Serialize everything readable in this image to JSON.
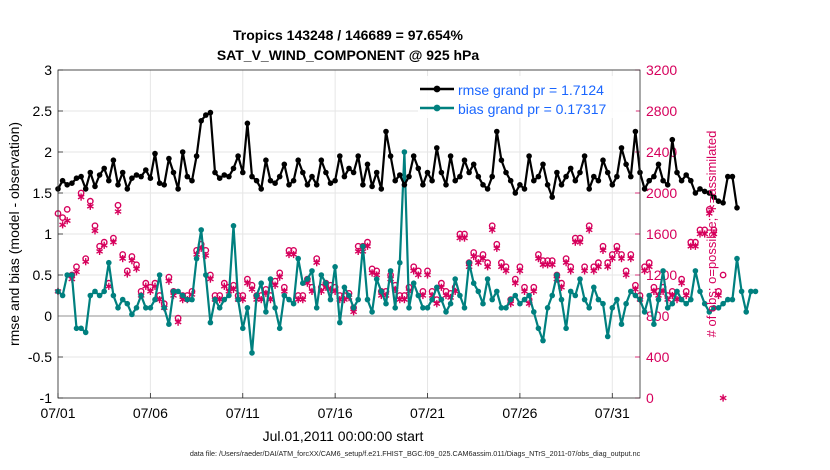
{
  "chart_data": {
    "type": "line",
    "title": "Tropics 143248 / 146689 = 97.654%",
    "subtitle": "SAT_V_WIND_COMPONENT @ 925 hPa",
    "xlabel": "Jul.01,2011 00:00:00 start",
    "ylabel": "rmse and bias (model - observation)",
    "ylabel_right": "# of obs: o=possible; ∗=assimilated",
    "ylim": [
      -1,
      3
    ],
    "ylim_right": [
      0,
      3200
    ],
    "xlim_days": [
      1,
      32.5
    ],
    "x_ticks": [
      {
        "day": 1,
        "label": "07/01"
      },
      {
        "day": 6,
        "label": "07/06"
      },
      {
        "day": 11,
        "label": "07/11"
      },
      {
        "day": 16,
        "label": "07/16"
      },
      {
        "day": 21,
        "label": "07/21"
      },
      {
        "day": 26,
        "label": "07/26"
      },
      {
        "day": 31,
        "label": "07/31"
      }
    ],
    "y_ticks": [
      "-1",
      "-0.5",
      "0",
      "0.5",
      "1",
      "1.5",
      "2",
      "2.5",
      "3"
    ],
    "y_ticks_right": [
      "0",
      "400",
      "800",
      "1200",
      "1600",
      "2000",
      "2400",
      "2800",
      "3200"
    ],
    "legend_position": "top-right",
    "legend": [
      {
        "label": "rmse grand pr = 1.7124",
        "color": "#000000"
      },
      {
        "label": "bias grand pr = 0.17317",
        "color": "#00807f"
      }
    ],
    "time_step_days": 0.25,
    "series": [
      {
        "name": "rmse",
        "color": "#000000",
        "values": [
          1.55,
          1.65,
          1.6,
          1.62,
          1.68,
          1.7,
          1.55,
          1.75,
          1.58,
          1.72,
          1.8,
          1.65,
          1.9,
          1.6,
          1.75,
          1.55,
          1.68,
          1.72,
          1.7,
          1.78,
          1.68,
          1.98,
          1.62,
          1.6,
          1.92,
          1.75,
          1.55,
          2.0,
          1.7,
          1.65,
          1.95,
          2.38,
          2.45,
          2.48,
          1.75,
          1.68,
          1.72,
          1.7,
          1.8,
          1.95,
          1.75,
          2.35,
          1.7,
          1.65,
          1.55,
          1.9,
          1.65,
          1.62,
          1.7,
          1.85,
          1.6,
          1.65,
          1.9,
          1.75,
          1.6,
          1.7,
          1.6,
          1.9,
          1.75,
          1.62,
          1.65,
          1.95,
          1.7,
          1.8,
          1.75,
          1.95,
          1.6,
          1.85,
          1.58,
          1.75,
          1.55,
          2.25,
          1.95,
          1.65,
          1.72,
          1.6,
          1.7,
          1.95,
          1.8,
          1.6,
          1.75,
          1.65,
          2.05,
          1.75,
          1.6,
          1.95,
          1.65,
          1.7,
          1.9,
          1.75,
          1.85,
          1.7,
          1.6,
          1.55,
          1.7,
          2.25,
          1.9,
          1.75,
          1.65,
          1.5,
          1.6,
          1.55,
          1.95,
          1.65,
          1.7,
          1.85,
          1.6,
          1.45,
          1.75,
          1.6,
          1.7,
          1.8,
          1.65,
          1.75,
          1.95,
          1.55,
          1.7,
          1.65,
          1.9,
          1.75,
          1.6,
          1.7,
          2.05,
          1.85,
          1.7,
          2.25,
          1.75,
          1.55,
          1.65,
          1.7,
          1.85,
          1.65,
          1.6,
          2.15,
          1.75,
          1.65,
          1.72,
          1.65,
          1.5,
          1.55,
          1.52,
          1.5,
          1.45,
          1.4,
          1.38,
          1.7,
          1.7,
          1.32
        ]
      },
      {
        "name": "bias",
        "color": "#00807f",
        "values": [
          0.3,
          0.25,
          0.5,
          0.5,
          -0.15,
          -0.15,
          -0.2,
          0.25,
          0.3,
          0.25,
          0.3,
          0.65,
          0.25,
          0.1,
          0.2,
          0.15,
          0.02,
          0.1,
          0.25,
          0.1,
          0.1,
          0.2,
          0.5,
          0.1,
          -0.1,
          0.3,
          0.3,
          0.25,
          0.2,
          0.2,
          0.7,
          1.05,
          0.5,
          -0.08,
          0.2,
          0.1,
          0.2,
          0.25,
          1.1,
          0.2,
          -0.15,
          0.1,
          -0.45,
          0.25,
          0.4,
          0.05,
          0.45,
          0.1,
          -0.15,
          0.25,
          0.2,
          0.15,
          0.7,
          0.4,
          0.45,
          0.55,
          0.1,
          0.5,
          0.4,
          0.2,
          0.6,
          -0.08,
          0.35,
          0.25,
          0.1,
          0.2,
          0.85,
          0.2,
          0.05,
          0.45,
          0.3,
          0.15,
          0.55,
          0.1,
          0.65,
          2.0,
          0.1,
          0.4,
          0.25,
          0.1,
          0.1,
          0.2,
          0.35,
          0.2,
          0.05,
          0.15,
          0.45,
          0.25,
          0.1,
          0.65,
          0.4,
          0.3,
          0.15,
          0.45,
          0.2,
          0.3,
          0.1,
          0.1,
          0.2,
          0.25,
          0.15,
          0.2,
          0.25,
          0.05,
          -0.15,
          -0.3,
          0.1,
          0.25,
          0.5,
          0.2,
          -0.15,
          0.3,
          0.25,
          0.45,
          0.2,
          0.1,
          0.35,
          0.2,
          0.15,
          -0.25,
          0.1,
          0.2,
          -0.1,
          0.15,
          0.3,
          0.25,
          0.2,
          0.05,
          0.25,
          -0.1,
          0.2,
          0.55,
          0.1,
          0.15,
          0.3,
          0.2,
          0.15,
          0.2,
          0.55,
          0.3,
          0.15,
          0.05,
          0.1,
          0.1,
          0.15,
          0.2,
          0.2,
          0.7,
          0.3,
          0.05,
          0.3,
          0.3
        ]
      },
      {
        "name": "possible",
        "marker": "o",
        "color": "#d6005c",
        "values": [
          1800,
          1760,
          1840,
          1200,
          1280,
          2000,
          1360,
          1920,
          1680,
          1480,
          1520,
          1120,
          1560,
          1880,
          1400,
          1240,
          1380,
          1300,
          1040,
          1120,
          1080,
          1120,
          1000,
          920,
          1180,
          1040,
          780,
          1000,
          1000,
          1040,
          1440,
          1500,
          1440,
          1200,
          1000,
          1000,
          1120,
          1080,
          1100,
          1000,
          1000,
          1160,
          1100,
          1000,
          1000,
          1060,
          1000,
          1140,
          1220,
          1080,
          1440,
          1440,
          1000,
          1000,
          1160,
          1080,
          1360,
          1080,
          1120,
          1100,
          1080,
          1000,
          1000,
          1020,
          880,
          1480,
          1480,
          1520,
          1260,
          1240,
          1040,
          1040,
          1200,
          1100,
          1000,
          1000,
          1080,
          1280,
          1240,
          1040,
          1240,
          1040,
          960,
          1120,
          1040,
          1020,
          1080,
          1600,
          1600,
          1320,
          1420,
          1360,
          1400,
          1320,
          1680,
          1500,
          1320,
          1280,
          960,
          1160,
          1280,
          1080,
          960,
          1080,
          1400,
          1340,
          1340,
          1340,
          1200,
          1120,
          1360,
          1280,
          1560,
          1560,
          1280,
          1680,
          1280,
          1320,
          1480,
          1320,
          1400,
          1480,
          1400,
          1240,
          1400,
          1100,
          1000,
          1280,
          1320,
          1080,
          1040,
          1080,
          1000,
          1040,
          1000,
          1160,
          1040,
          1520,
          1520,
          1640,
          1640,
          1840,
          1640,
          1040,
          1200
        ]
      },
      {
        "name": "assimilated",
        "marker": "*",
        "color": "#d6005c",
        "values": [
          1040,
          1690,
          1730,
          1160,
          1230,
          1960,
          1330,
          1870,
          1630,
          1430,
          1490,
          1090,
          1520,
          1820,
          1360,
          1210,
          1340,
          1260,
          1000,
          1090,
          1040,
          1090,
          960,
          880,
          1140,
          1000,
          740,
          960,
          960,
          1010,
          1400,
          1460,
          1390,
          1160,
          960,
          960,
          1090,
          1040,
          1060,
          960,
          960,
          1120,
          1060,
          960,
          960,
          1020,
          960,
          1100,
          1180,
          1040,
          1400,
          1400,
          960,
          960,
          1120,
          1040,
          1320,
          1040,
          1080,
          1060,
          1040,
          960,
          960,
          980,
          840,
          1430,
          1430,
          1480,
          1220,
          1200,
          1000,
          1000,
          1160,
          1060,
          960,
          960,
          1040,
          1240,
          1200,
          1000,
          1200,
          1000,
          920,
          1080,
          1000,
          980,
          1040,
          1560,
          1560,
          1280,
          1380,
          1320,
          1360,
          1280,
          1640,
          1460,
          1280,
          1240,
          920,
          1120,
          1240,
          1040,
          920,
          1040,
          1360,
          1300,
          1300,
          1300,
          1160,
          1080,
          1320,
          1240,
          1520,
          1520,
          1240,
          1640,
          1240,
          1280,
          1440,
          1280,
          1360,
          1440,
          1360,
          1200,
          1360,
          1060,
          960,
          1240,
          1280,
          1040,
          1000,
          1040,
          960,
          1000,
          960,
          1120,
          1000,
          1480,
          1480,
          1600,
          1600,
          1800,
          1600,
          1000,
          0
        ]
      }
    ]
  },
  "footer_text": "data file: /Users/raeder/DAI/ATM_forcXX/CAM6_setup/f.e21.FHIST_BGC.f09_025.CAM6assim.011/Diags_NTrS_2011-07/obs_diag_output.nc",
  "colors": {
    "rmse": "#000000",
    "bias": "#00807f",
    "obs": "#d6005c",
    "zero_line": "#c8c8c8",
    "right_axis": "#d6005c",
    "legend_text": "#1a66ff"
  }
}
